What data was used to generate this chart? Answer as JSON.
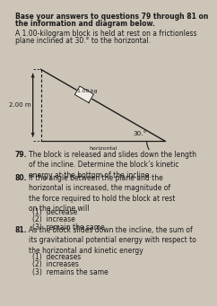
{
  "title_line1": "Base your answers to questions 79 through 81 on",
  "title_line2": "the information and diagram below.",
  "intro_line1": "A 1.00-kilogram block is held at rest on a frictionless",
  "intro_line2": "plane inclined at 30.° to the horizontal.",
  "block_label": "1.00 kg",
  "length_label": "2.00 m",
  "angle_label": "30.°",
  "horiz_label": "horizontal",
  "q79_num": "79.",
  "q79_text": "The block is released and slides down the length\nof the incline. Determine the block’s kinetic\nenergy at the bottom of the incline.",
  "q80_num": "80.",
  "q80_text": "If the angle between the plane and the\nhorizontal is increased, the magnitude of\nthe force required to hold the block at rest\non the incline will",
  "q80_c1": "(1)  decrease",
  "q80_c2": "(2)  increase",
  "q80_c3": "(3)  remain the same",
  "q81_num": "81.",
  "q81_text": "As the block slides down the incline, the sum of\nits gravitational potential energy with respect to\nthe horizontal and kinetic energy",
  "q81_c1": "(1)  decreases",
  "q81_c2": "(2)  increases",
  "q81_c3": "(3)  remains the same",
  "bg_color": "#ccc5b8",
  "text_color": "#1a1a1a"
}
